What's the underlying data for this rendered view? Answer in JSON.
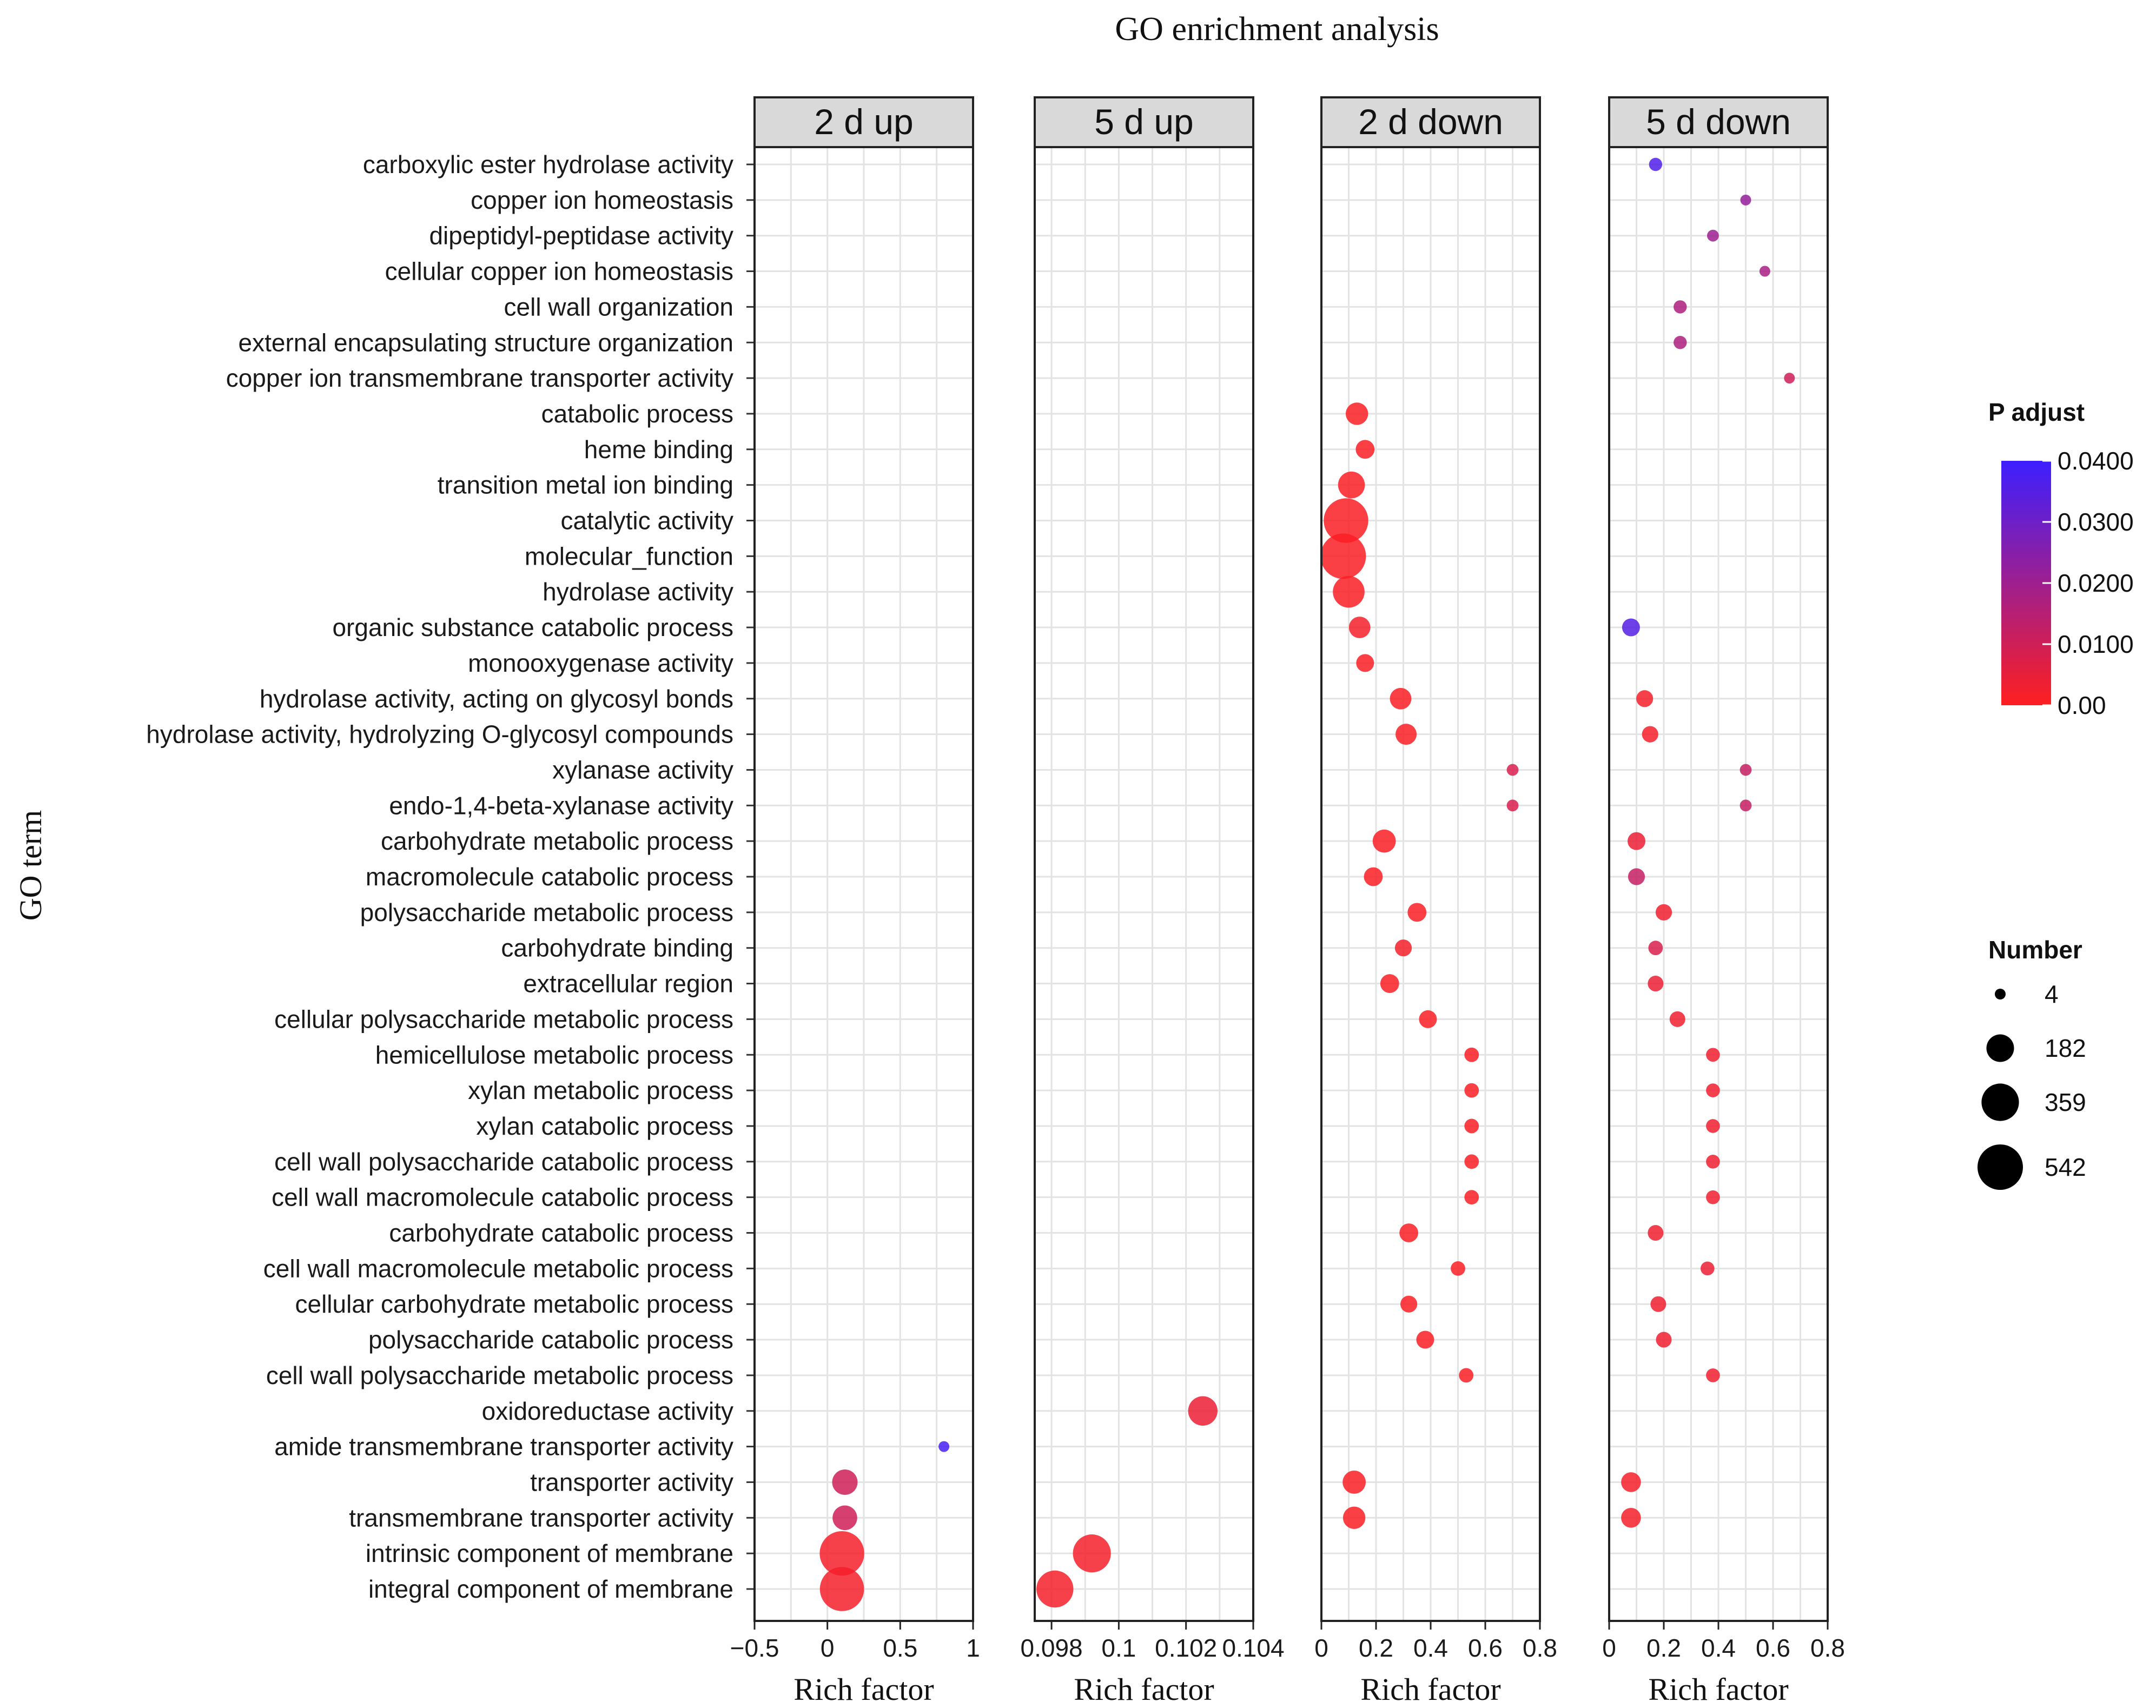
{
  "chart_data": {
    "type": "scatter",
    "title": "GO enrichment analysis",
    "ylabel": "GO term",
    "xlabel": "Rich factor",
    "terms": [
      "carboxylic ester hydrolase activity",
      "copper ion homeostasis",
      "dipeptidyl-peptidase activity",
      "cellular copper ion homeostasis",
      "cell wall organization",
      "external encapsulating structure organization",
      "copper ion transmembrane transporter activity",
      "catabolic process",
      "heme binding",
      "transition metal ion binding",
      "catalytic activity",
      "molecular_function",
      "hydrolase activity",
      "organic substance catabolic process",
      "monooxygenase activity",
      "hydrolase activity, acting on glycosyl bonds",
      "hydrolase activity, hydrolyzing O-glycosyl compounds",
      "xylanase activity",
      "endo-1,4-beta-xylanase activity",
      "carbohydrate metabolic process",
      "macromolecule catabolic process",
      "polysaccharide metabolic process",
      "carbohydrate binding",
      "extracellular region",
      "cellular polysaccharide metabolic process",
      "hemicellulose metabolic process",
      "xylan metabolic process",
      "xylan catabolic process",
      "cell wall polysaccharide catabolic process",
      "cell wall macromolecule catabolic process",
      "carbohydrate catabolic process",
      "cell wall macromolecule metabolic process",
      "cellular carbohydrate metabolic process",
      "polysaccharide catabolic process",
      "cell wall polysaccharide metabolic process",
      "oxidoreductase activity",
      "amide transmembrane transporter activity",
      "transporter activity",
      "transmembrane transporter activity",
      "intrinsic component of membrane",
      "integral component of membrane"
    ],
    "panels": [
      {
        "label": "2 d up",
        "xlim": [
          -0.5,
          1
        ],
        "ticks": [
          -0.5,
          0,
          0.5,
          1
        ],
        "tick_labels": [
          "−0.5",
          "0",
          "0.5",
          "1"
        ],
        "points": [
          {
            "term": "amide transmembrane transporter activity",
            "x": 0.8,
            "number": 4,
            "padj": 0.038
          },
          {
            "term": "transporter activity",
            "x": 0.12,
            "number": 150,
            "padj": 0.01
          },
          {
            "term": "transmembrane transporter activity",
            "x": 0.12,
            "number": 140,
            "padj": 0.01
          },
          {
            "term": "intrinsic component of membrane",
            "x": 0.1,
            "number": 520,
            "padj": 0.002
          },
          {
            "term": "integral component of membrane",
            "x": 0.1,
            "number": 510,
            "padj": 0.002
          }
        ]
      },
      {
        "label": "5 d up",
        "xlim": [
          0.0975,
          0.104
        ],
        "ticks": [
          0.098,
          0.1,
          0.102,
          0.104
        ],
        "tick_labels": [
          "0.098",
          "0.1",
          "0.102",
          "0.104"
        ],
        "points": [
          {
            "term": "oxidoreductase activity",
            "x": 0.1025,
            "number": 210,
            "padj": 0.004
          },
          {
            "term": "intrinsic component of membrane",
            "x": 0.0992,
            "number": 370,
            "padj": 0.002
          },
          {
            "term": "integral component of membrane",
            "x": 0.0981,
            "number": 350,
            "padj": 0.002
          }
        ]
      },
      {
        "label": "2 d down",
        "xlim": [
          0,
          0.8
        ],
        "ticks": [
          0,
          0.2,
          0.4,
          0.6,
          0.8
        ],
        "tick_labels": [
          "0",
          "0.2",
          "0.4",
          "0.6",
          "0.8"
        ],
        "points": [
          {
            "term": "catabolic process",
            "x": 0.13,
            "number": 110,
            "padj": 0.001
          },
          {
            "term": "heme binding",
            "x": 0.16,
            "number": 70,
            "padj": 0.001
          },
          {
            "term": "transition metal ion binding",
            "x": 0.11,
            "number": 170,
            "padj": 0.001
          },
          {
            "term": "catalytic activity",
            "x": 0.09,
            "number": 520,
            "padj": 0.001
          },
          {
            "term": "molecular_function",
            "x": 0.08,
            "number": 542,
            "padj": 0.001
          },
          {
            "term": "hydrolase activity",
            "x": 0.1,
            "number": 250,
            "padj": 0.001
          },
          {
            "term": "organic substance catabolic process",
            "x": 0.14,
            "number": 100,
            "padj": 0.002
          },
          {
            "term": "monooxygenase activity",
            "x": 0.16,
            "number": 60,
            "padj": 0.001
          },
          {
            "term": "hydrolase activity, acting on glycosyl bonds",
            "x": 0.29,
            "number": 100,
            "padj": 0.001
          },
          {
            "term": "hydrolase activity, hydrolyzing O-glycosyl compounds",
            "x": 0.31,
            "number": 95,
            "padj": 0.001
          },
          {
            "term": "xylanase activity",
            "x": 0.7,
            "number": 10,
            "padj": 0.008
          },
          {
            "term": "endo-1,4-beta-xylanase activity",
            "x": 0.7,
            "number": 10,
            "padj": 0.008
          },
          {
            "term": "carbohydrate metabolic process",
            "x": 0.23,
            "number": 120,
            "padj": 0.001
          },
          {
            "term": "macromolecule catabolic process",
            "x": 0.19,
            "number": 70,
            "padj": 0.001
          },
          {
            "term": "polysaccharide metabolic process",
            "x": 0.35,
            "number": 70,
            "padj": 0.001
          },
          {
            "term": "carbohydrate binding",
            "x": 0.3,
            "number": 50,
            "padj": 0.002
          },
          {
            "term": "extracellular region",
            "x": 0.25,
            "number": 70,
            "padj": 0.001
          },
          {
            "term": "cellular polysaccharide metabolic process",
            "x": 0.39,
            "number": 60,
            "padj": 0.001
          },
          {
            "term": "hemicellulose metabolic process",
            "x": 0.55,
            "number": 30,
            "padj": 0.001
          },
          {
            "term": "xylan metabolic process",
            "x": 0.55,
            "number": 30,
            "padj": 0.001
          },
          {
            "term": "xylan catabolic process",
            "x": 0.55,
            "number": 30,
            "padj": 0.001
          },
          {
            "term": "cell wall polysaccharide catabolic process",
            "x": 0.55,
            "number": 30,
            "padj": 0.001
          },
          {
            "term": "cell wall macromolecule catabolic process",
            "x": 0.55,
            "number": 30,
            "padj": 0.001
          },
          {
            "term": "carbohydrate catabolic process",
            "x": 0.32,
            "number": 70,
            "padj": 0.001
          },
          {
            "term": "cell wall macromolecule metabolic process",
            "x": 0.5,
            "number": 30,
            "padj": 0.001
          },
          {
            "term": "cellular carbohydrate metabolic process",
            "x": 0.32,
            "number": 50,
            "padj": 0.001
          },
          {
            "term": "polysaccharide catabolic process",
            "x": 0.38,
            "number": 60,
            "padj": 0.001
          },
          {
            "term": "cell wall polysaccharide metabolic process",
            "x": 0.53,
            "number": 30,
            "padj": 0.001
          },
          {
            "term": "transporter activity",
            "x": 0.12,
            "number": 120,
            "padj": 0.001
          },
          {
            "term": "transmembrane transporter activity",
            "x": 0.12,
            "number": 110,
            "padj": 0.001
          }
        ]
      },
      {
        "label": "5 d down",
        "xlim": [
          0,
          0.8
        ],
        "ticks": [
          0,
          0.2,
          0.4,
          0.6,
          0.8
        ],
        "tick_labels": [
          "0",
          "0.2",
          "0.4",
          "0.6",
          "0.8"
        ],
        "points": [
          {
            "term": "carboxylic ester hydrolase activity",
            "x": 0.17,
            "number": 20,
            "padj": 0.036
          },
          {
            "term": "copper ion homeostasis",
            "x": 0.5,
            "number": 4,
            "padj": 0.022
          },
          {
            "term": "dipeptidyl-peptidase activity",
            "x": 0.38,
            "number": 10,
            "padj": 0.02
          },
          {
            "term": "cellular copper ion homeostasis",
            "x": 0.57,
            "number": 4,
            "padj": 0.018
          },
          {
            "term": "cell wall organization",
            "x": 0.26,
            "number": 20,
            "padj": 0.017
          },
          {
            "term": "external encapsulating structure organization",
            "x": 0.26,
            "number": 20,
            "padj": 0.017
          },
          {
            "term": "copper ion transmembrane transporter activity",
            "x": 0.66,
            "number": 4,
            "padj": 0.01
          },
          {
            "term": "organic substance catabolic process",
            "x": 0.08,
            "number": 60,
            "padj": 0.035
          },
          {
            "term": "hydrolase activity, acting on glycosyl bonds",
            "x": 0.13,
            "number": 50,
            "padj": 0.002
          },
          {
            "term": "hydrolase activity, hydrolyzing O-glycosyl compounds",
            "x": 0.15,
            "number": 45,
            "padj": 0.002
          },
          {
            "term": "xylanase activity",
            "x": 0.5,
            "number": 10,
            "padj": 0.012
          },
          {
            "term": "endo-1,4-beta-xylanase activity",
            "x": 0.5,
            "number": 10,
            "padj": 0.012
          },
          {
            "term": "carbohydrate metabolic process",
            "x": 0.1,
            "number": 60,
            "padj": 0.004
          },
          {
            "term": "macromolecule catabolic process",
            "x": 0.1,
            "number": 50,
            "padj": 0.012
          },
          {
            "term": "polysaccharide metabolic process",
            "x": 0.2,
            "number": 45,
            "padj": 0.003
          },
          {
            "term": "carbohydrate binding",
            "x": 0.17,
            "number": 30,
            "padj": 0.008
          },
          {
            "term": "extracellular region",
            "x": 0.17,
            "number": 40,
            "padj": 0.004
          },
          {
            "term": "cellular polysaccharide metabolic process",
            "x": 0.25,
            "number": 40,
            "padj": 0.003
          },
          {
            "term": "hemicellulose metabolic process",
            "x": 0.38,
            "number": 25,
            "padj": 0.003
          },
          {
            "term": "xylan metabolic process",
            "x": 0.38,
            "number": 25,
            "padj": 0.003
          },
          {
            "term": "xylan catabolic process",
            "x": 0.38,
            "number": 25,
            "padj": 0.003
          },
          {
            "term": "cell wall polysaccharide catabolic process",
            "x": 0.38,
            "number": 25,
            "padj": 0.003
          },
          {
            "term": "cell wall macromolecule catabolic process",
            "x": 0.38,
            "number": 25,
            "padj": 0.003
          },
          {
            "term": "carbohydrate catabolic process",
            "x": 0.17,
            "number": 40,
            "padj": 0.003
          },
          {
            "term": "cell wall macromolecule metabolic process",
            "x": 0.36,
            "number": 25,
            "padj": 0.004
          },
          {
            "term": "cellular carbohydrate metabolic process",
            "x": 0.18,
            "number": 40,
            "padj": 0.003
          },
          {
            "term": "polysaccharide catabolic process",
            "x": 0.2,
            "number": 40,
            "padj": 0.003
          },
          {
            "term": "cell wall polysaccharide metabolic process",
            "x": 0.38,
            "number": 25,
            "padj": 0.003
          },
          {
            "term": "transporter activity",
            "x": 0.08,
            "number": 80,
            "padj": 0.002
          },
          {
            "term": "transmembrane transporter activity",
            "x": 0.08,
            "number": 80,
            "padj": 0.002
          }
        ]
      }
    ],
    "color_legend": {
      "title": "P adjust",
      "range": [
        0,
        0.04
      ],
      "ticks": [
        0.04,
        0.03,
        0.02,
        0.01,
        0
      ],
      "tick_labels": [
        "0.0400",
        "0.0300",
        "0.0200",
        "0.0100",
        "0.00"
      ],
      "low_color": "#ff1f1f",
      "high_color": "#3d1fff"
    },
    "size_legend": {
      "title": "Number",
      "values": [
        4,
        182,
        359,
        542
      ],
      "labels": [
        "4",
        "182",
        "359",
        "542"
      ]
    },
    "grid": true,
    "legend_position": "right"
  }
}
